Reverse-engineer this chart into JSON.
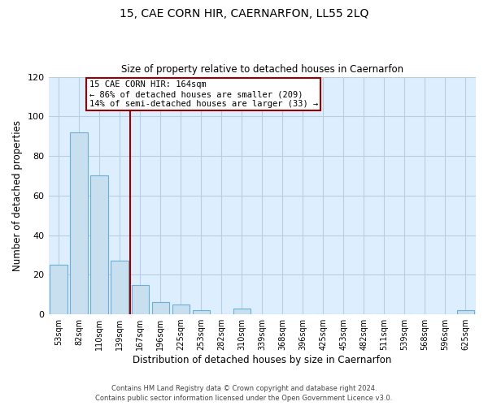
{
  "title": "15, CAE CORN HIR, CAERNARFON, LL55 2LQ",
  "subtitle": "Size of property relative to detached houses in Caernarfon",
  "xlabel": "Distribution of detached houses by size in Caernarfon",
  "ylabel": "Number of detached properties",
  "bar_labels": [
    "53sqm",
    "82sqm",
    "110sqm",
    "139sqm",
    "167sqm",
    "196sqm",
    "225sqm",
    "253sqm",
    "282sqm",
    "310sqm",
    "339sqm",
    "368sqm",
    "396sqm",
    "425sqm",
    "453sqm",
    "482sqm",
    "511sqm",
    "539sqm",
    "568sqm",
    "596sqm",
    "625sqm"
  ],
  "bar_values": [
    25,
    92,
    70,
    27,
    15,
    6,
    5,
    2,
    0,
    3,
    0,
    0,
    0,
    0,
    0,
    0,
    0,
    0,
    0,
    0,
    2
  ],
  "bar_color": "#c8dff0",
  "bar_edge_color": "#6baed6",
  "marker_label": "15 CAE CORN HIR: 164sqm",
  "annotation_line1": "← 86% of detached houses are smaller (209)",
  "annotation_line2": "14% of semi-detached houses are larger (33) →",
  "vline_color": "#9b0000",
  "vline_x": 3.5,
  "ylim": [
    0,
    120
  ],
  "yticks": [
    0,
    20,
    40,
    60,
    80,
    100,
    120
  ],
  "footnote1": "Contains HM Land Registry data © Crown copyright and database right 2024.",
  "footnote2": "Contains public sector information licensed under the Open Government Licence v3.0.",
  "background_color": "#ffffff",
  "plot_bg_color": "#ddeeff",
  "grid_color": "#b8cfe0"
}
